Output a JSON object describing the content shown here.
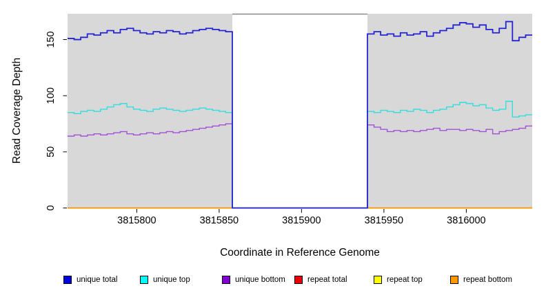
{
  "chart_data": {
    "type": "line",
    "subtype": "step-coverage",
    "title": "",
    "xlabel": "Coordinate in Reference Genome",
    "ylabel": "Read Coverage Depth",
    "xlim": [
      3815758,
      3816040
    ],
    "ylim": [
      0,
      173
    ],
    "xticks": [
      3815800,
      3815850,
      3815900,
      3815950,
      3816000
    ],
    "yticks": [
      0,
      50,
      100,
      150
    ],
    "grid": false,
    "legend_position": "bottom",
    "plot_background": "#d8d8d8",
    "shaded_regions": [
      [
        3815758,
        3815858
      ],
      [
        3815940,
        3816040
      ]
    ],
    "masked_region": {
      "start": 3815858,
      "end": 3815940,
      "fill": "#ffffff",
      "top_border": "#8a8a8a"
    },
    "series": [
      {
        "name": "repeat total",
        "color": "#e60000",
        "line_color": "#e60000",
        "constant": 0
      },
      {
        "name": "repeat top",
        "color": "#ffff00",
        "line_color": "#ffff00",
        "constant": 0
      },
      {
        "name": "repeat bottom",
        "color": "#ff9900",
        "line_color": "#ff9400",
        "constant": 0
      },
      {
        "name": "unique bottom",
        "color": "#8400d2",
        "line_color": "#a24fd8",
        "gap_value": 0,
        "segments": [
          {
            "x0": 3815758,
            "step": 4,
            "end": 3815858,
            "values": [
              64,
              65,
              64,
              65,
              66,
              65,
              66,
              67,
              68,
              66,
              65,
              66,
              67,
              66,
              67,
              68,
              67,
              68,
              69,
              70,
              71,
              72,
              73,
              74,
              75
            ]
          },
          {
            "x0": 3815940,
            "step": 4,
            "end": 3816040,
            "values": [
              74,
              72,
              70,
              68,
              69,
              68,
              69,
              68,
              69,
              70,
              71,
              69,
              70,
              70,
              69,
              70,
              69,
              68,
              70,
              66,
              68,
              69,
              70,
              71,
              73
            ]
          }
        ]
      },
      {
        "name": "unique top",
        "color": "#00ffff",
        "line_color": "#2fdede",
        "gap_value": 0,
        "segments": [
          {
            "x0": 3815758,
            "step": 4,
            "end": 3815858,
            "values": [
              85,
              84,
              86,
              87,
              86,
              88,
              90,
              92,
              93,
              90,
              88,
              87,
              86,
              88,
              89,
              88,
              87,
              86,
              87,
              88,
              89,
              88,
              87,
              86,
              85
            ]
          },
          {
            "x0": 3815940,
            "step": 4,
            "end": 3816040,
            "values": [
              86,
              85,
              87,
              86,
              85,
              87,
              86,
              88,
              87,
              85,
              87,
              88,
              90,
              92,
              94,
              93,
              91,
              92,
              89,
              87,
              88,
              95,
              81,
              82,
              83
            ]
          }
        ]
      },
      {
        "name": "unique total",
        "color": "#0000e1",
        "line_color": "#2323d2",
        "gap_value": 0,
        "segments": [
          {
            "x0": 3815758,
            "step": 4,
            "end": 3815858,
            "values": [
              151,
              150,
              152,
              155,
              154,
              156,
              158,
              156,
              159,
              160,
              158,
              156,
              155,
              157,
              156,
              158,
              157,
              155,
              156,
              158,
              159,
              160,
              159,
              158,
              157
            ]
          },
          {
            "x0": 3815940,
            "step": 4,
            "end": 3816040,
            "values": [
              155,
              157,
              154,
              155,
              153,
              156,
              154,
              155,
              157,
              153,
              156,
              158,
              160,
              163,
              165,
              164,
              161,
              163,
              159,
              156,
              160,
              166,
              149,
              152,
              154
            ]
          }
        ]
      }
    ]
  },
  "legend": {
    "items": [
      {
        "label": "unique total",
        "color": "#0000e1"
      },
      {
        "label": "unique top",
        "color": "#00ffff"
      },
      {
        "label": "unique bottom",
        "color": "#8400d2"
      },
      {
        "label": "repeat total",
        "color": "#e60000"
      },
      {
        "label": "repeat top",
        "color": "#ffff00"
      },
      {
        "label": "repeat bottom",
        "color": "#ff9900"
      }
    ]
  }
}
